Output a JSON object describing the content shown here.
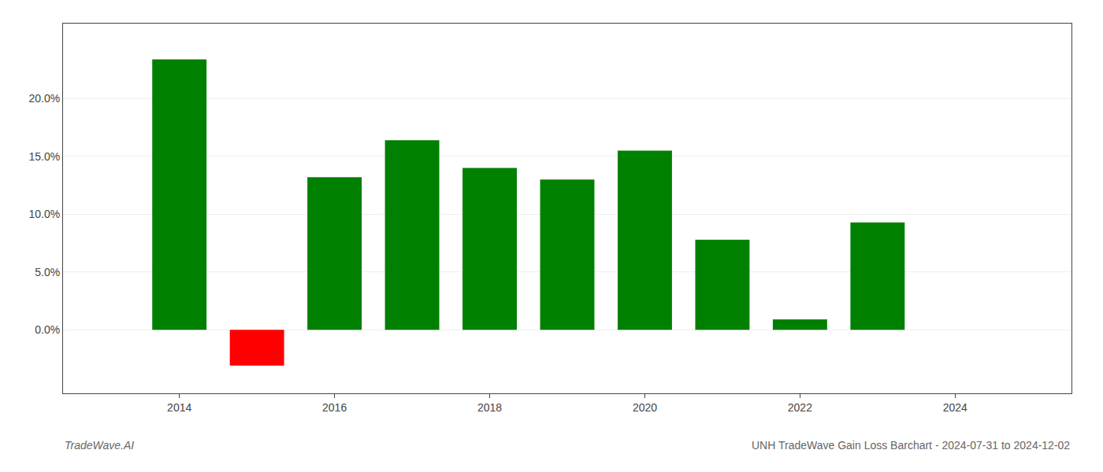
{
  "chart_data": {
    "type": "bar",
    "title": "UNH TradeWave Gain Loss Barchart - 2024-07-31 to 2024-12-02",
    "annotations": [
      "TradeWave.AI"
    ],
    "x": [
      2014,
      2015,
      2016,
      2017,
      2018,
      2019,
      2020,
      2021,
      2022,
      2023
    ],
    "values": [
      0.234,
      -0.031,
      0.132,
      0.164,
      0.14,
      0.13,
      0.155,
      0.078,
      0.009,
      0.093
    ],
    "colors": [
      "#008000",
      "#ff0000",
      "#008000",
      "#008000",
      "#008000",
      "#008000",
      "#008000",
      "#008000",
      "#008000",
      "#008000"
    ],
    "xlim": [
      2012.5,
      2025.5
    ],
    "xticks": [
      2014,
      2016,
      2018,
      2020,
      2022,
      2024
    ],
    "ylim": [
      -0.055,
      0.265
    ],
    "yticks": [
      {
        "value": 0.0,
        "label": "0.0%"
      },
      {
        "value": 0.05,
        "label": "5.0%"
      },
      {
        "value": 0.1,
        "label": "10.0%"
      },
      {
        "value": 0.15,
        "label": "15.0%"
      },
      {
        "value": 0.2,
        "label": "20.0%"
      }
    ],
    "grid": true
  }
}
